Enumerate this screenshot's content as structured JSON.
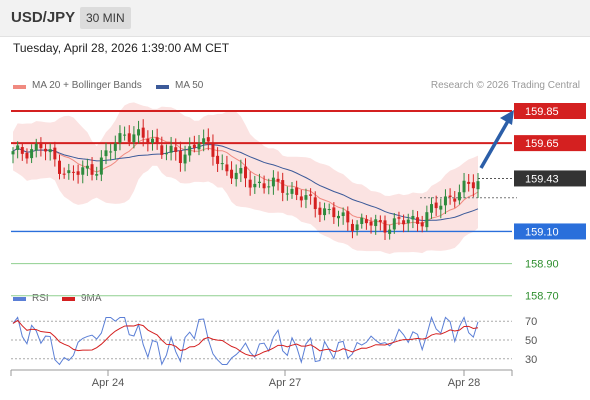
{
  "header": {
    "symbol": "USD/JPY",
    "timeframe": "30 MIN"
  },
  "datetime": "Tuesday, April 28, 2026 1:39:00 AM CET",
  "legend": {
    "ma20": "MA 20 + Bollinger Bands",
    "ma50": "MA 50",
    "ma20_color": "#f08a80",
    "ma50_color": "#3c5a99"
  },
  "copyright": "Research © 2026 Trading Central",
  "levels": [
    {
      "label": "159.85",
      "value": 159.85,
      "kind": "resistance",
      "color": "#d42020"
    },
    {
      "label": "159.65",
      "value": 159.65,
      "kind": "resistance",
      "color": "#d42020"
    },
    {
      "label": "159.43",
      "value": 159.43,
      "kind": "current",
      "color": "#333333"
    },
    {
      "label": "159.10",
      "value": 159.1,
      "kind": "pivot",
      "color": "#2a6fdb"
    },
    {
      "label": "158.90",
      "value": 158.9,
      "kind": "support",
      "color": "#2f8f2f"
    },
    {
      "label": "158.70",
      "value": 158.7,
      "kind": "support",
      "color": "#2f8f2f"
    }
  ],
  "rsi_legend": {
    "rsi": "RSI",
    "ma": "9MA",
    "rsi_color": "#5b7fd6",
    "ma_color": "#d42020"
  },
  "rsi_ticks": [
    "70",
    "50",
    "30"
  ],
  "x_ticks": [
    "Apr 24",
    "Apr 27",
    "Apr 28"
  ],
  "colors": {
    "bull": "#2e8b3e",
    "bear": "#d42020",
    "arrow": "#2b5ea8",
    "band": "#fbe3e2"
  }
}
